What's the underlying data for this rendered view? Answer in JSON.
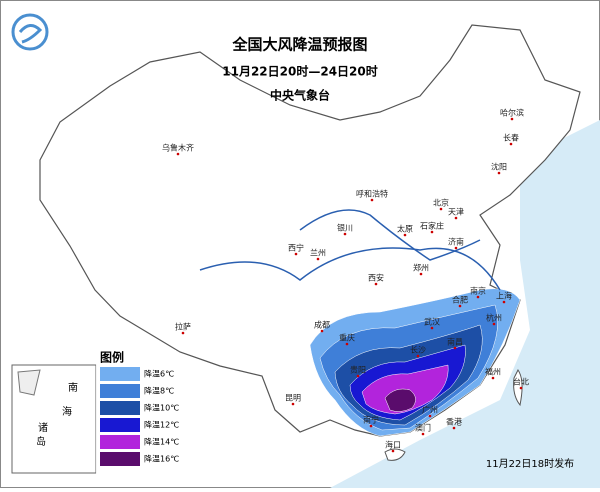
{
  "header": {
    "title": "全国大风降温预报图",
    "subtitle": "11月22日20时—24日20时",
    "issuer": "中央气象台"
  },
  "legend": {
    "title": "图例",
    "items": [
      {
        "label": "降温6℃",
        "color": "#72aef0"
      },
      {
        "label": "降温8℃",
        "color": "#3f7fd8"
      },
      {
        "label": "降温10℃",
        "color": "#1d4fa6"
      },
      {
        "label": "降温12℃",
        "color": "#1818d2"
      },
      {
        "label": "降温14℃",
        "color": "#b224dc"
      },
      {
        "label": "降温16℃",
        "color": "#5a0c6c"
      }
    ]
  },
  "cities": [
    "乌鲁木齐",
    "哈尔滨",
    "长春",
    "沈阳",
    "呼和浩特",
    "北京",
    "天津",
    "石家庄",
    "太原",
    "银川",
    "兰州",
    "西宁",
    "济南",
    "郑州",
    "西安",
    "拉萨",
    "成都",
    "重庆",
    "武汉",
    "合肥",
    "南京",
    "上海",
    "杭州",
    "长沙",
    "南昌",
    "福州",
    "贵阳",
    "昆明",
    "南宁",
    "广州",
    "香港",
    "澳门",
    "海口",
    "台北"
  ],
  "inset": {
    "labels": [
      "南",
      "海",
      "诸",
      "岛"
    ]
  },
  "footer": "11月22日18时发布"
}
